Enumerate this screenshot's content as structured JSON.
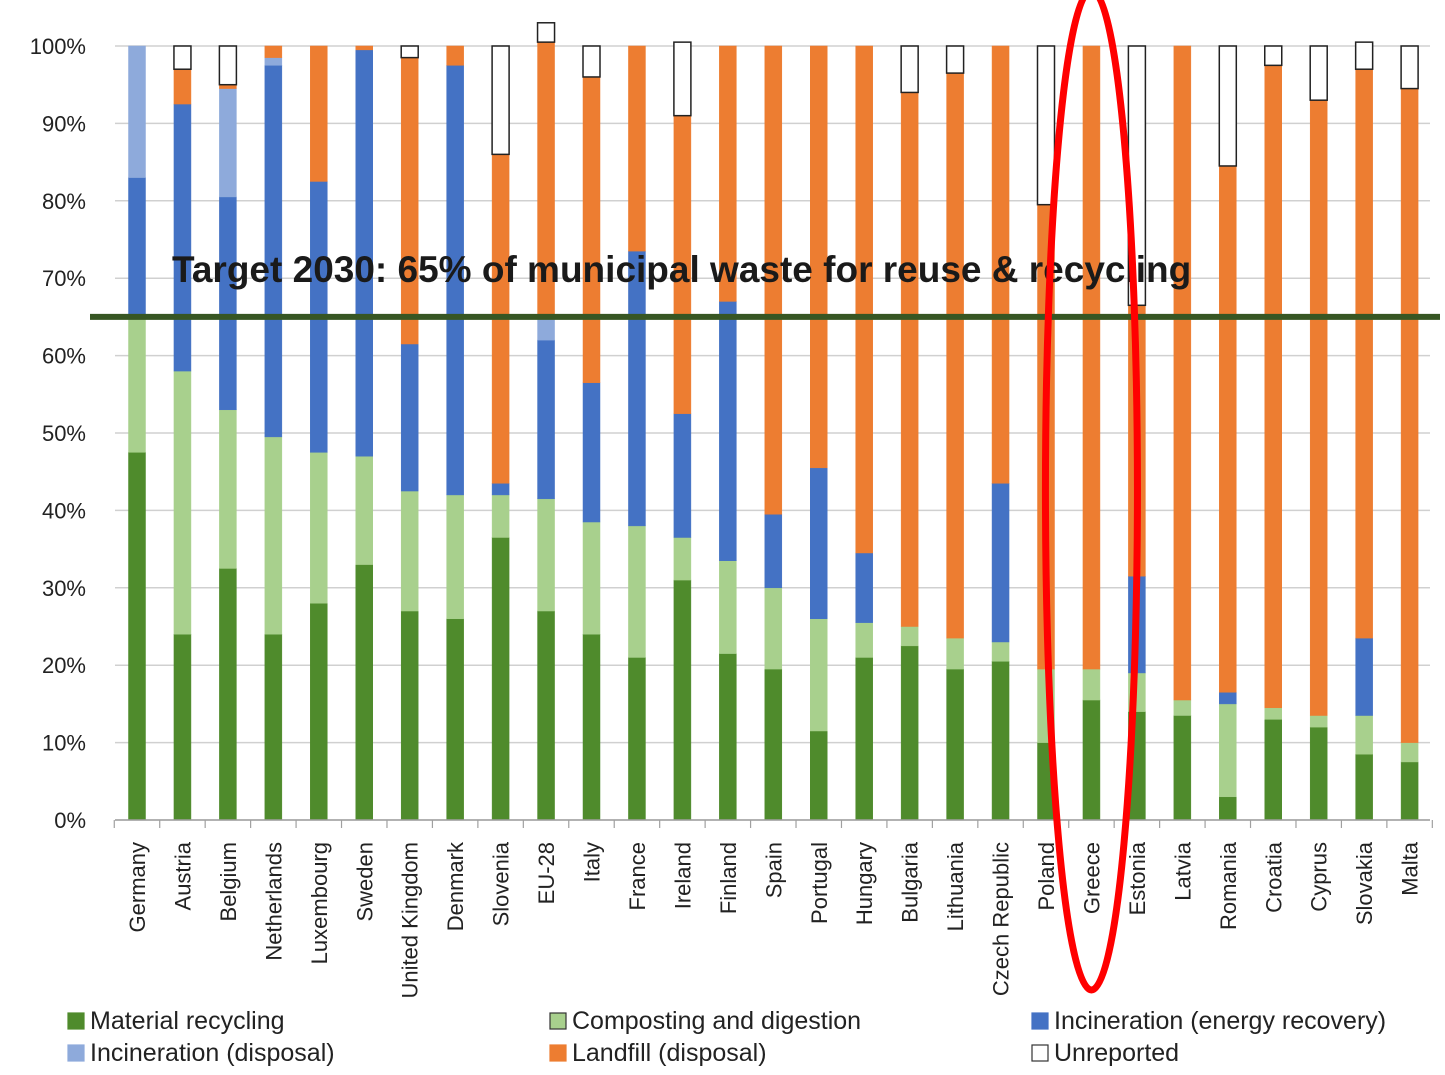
{
  "chart_data": {
    "type": "bar",
    "stacked": true,
    "ylim": [
      0,
      100
    ],
    "yticks": [
      "0%",
      "10%",
      "20%",
      "30%",
      "40%",
      "50%",
      "60%",
      "70%",
      "80%",
      "90%",
      "100%"
    ],
    "grid": true,
    "legend_position": "bottom",
    "categories": [
      "Germany",
      "Austria",
      "Belgium",
      "Netherlands",
      "Luxembourg",
      "Sweden",
      "United Kingdom",
      "Denmark",
      "Slovenia",
      "EU-28",
      "Italy",
      "France",
      "Ireland",
      "Finland",
      "Spain",
      "Portugal",
      "Hungary",
      "Bulgaria",
      "Lithuania",
      "Czech Republic",
      "Poland",
      "Greece",
      "Estonia",
      "Latvia",
      "Romania",
      "Croatia",
      "Cyprus",
      "Slovakia",
      "Malta"
    ],
    "series": [
      {
        "name": "Material recycling",
        "color": "#4f8b2c",
        "values": [
          47.5,
          24,
          32.5,
          24,
          28,
          33,
          27,
          26,
          36.5,
          27,
          24,
          21,
          31,
          21.5,
          19.5,
          11.5,
          21,
          22.5,
          19.5,
          20.5,
          10,
          15.5,
          14,
          13.5,
          3,
          13,
          12,
          8.5,
          7.5
        ]
      },
      {
        "name": "Composting and digestion",
        "color": "#a8d08d",
        "values": [
          17.5,
          34,
          20.5,
          25.5,
          19.5,
          14,
          15.5,
          16,
          5.5,
          14.5,
          14.5,
          17,
          5.5,
          12,
          10.5,
          14.5,
          4.5,
          2.5,
          4,
          2.5,
          9.5,
          4,
          5,
          2,
          12,
          1.5,
          1.5,
          5,
          2.5
        ]
      },
      {
        "name": "Incineration (energy recovery)",
        "color": "#4472c4",
        "values": [
          18,
          34.5,
          27.5,
          48,
          35,
          52.5,
          19,
          55.5,
          1.5,
          20.5,
          18,
          35.5,
          16,
          33.5,
          9.5,
          19.5,
          9,
          0,
          0,
          20.5,
          0,
          0,
          12.5,
          0,
          1.5,
          0,
          0,
          10,
          0
        ]
      },
      {
        "name": "Incineration (disposal)",
        "color": "#8eaadb",
        "values": [
          17,
          0,
          14,
          1,
          0,
          0,
          0,
          0,
          0,
          3,
          0,
          0,
          0,
          0,
          0,
          0,
          0,
          0,
          0,
          0,
          0,
          0,
          0,
          0,
          0,
          0,
          0,
          0,
          0
        ]
      },
      {
        "name": "Landfill (disposal)",
        "color": "#ed7d31",
        "values": [
          0,
          4.5,
          0.5,
          1.5,
          17.5,
          0.5,
          37,
          2.5,
          42.5,
          35.5,
          39.5,
          26.5,
          38.5,
          33,
          60.5,
          54.5,
          65.5,
          69,
          73,
          56.5,
          60,
          80.5,
          35,
          84.5,
          68,
          83,
          79.5,
          73.5,
          84.5
        ]
      },
      {
        "name": "Unreported",
        "color": "#ffffff",
        "values": [
          0,
          3,
          5,
          0,
          0,
          0,
          1.5,
          0,
          14,
          2.5,
          4,
          0,
          9.5,
          0,
          0,
          0,
          0,
          6,
          3.5,
          0,
          20.5,
          0,
          33.5,
          0,
          15.5,
          2.5,
          7,
          3.5,
          5.5
        ]
      }
    ],
    "annotations": {
      "target_text": "Target 2030: 65% of municipal waste for reuse & recycling",
      "target_value": 65,
      "target_color": "#375623",
      "highlight_category": "Greece",
      "highlight_color": "#ff0000"
    }
  }
}
